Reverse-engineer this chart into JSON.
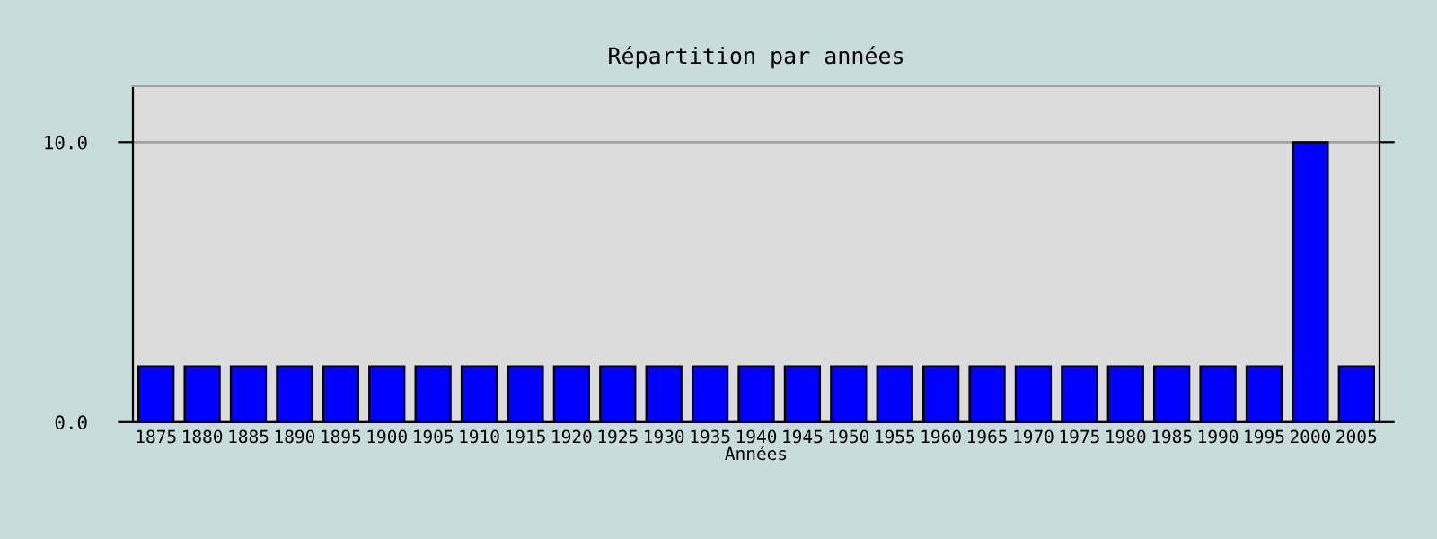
{
  "chart_data": {
    "type": "bar",
    "title": "Répartition par années",
    "xlabel": "Années",
    "categories": [
      "1875",
      "1880",
      "1885",
      "1890",
      "1895",
      "1900",
      "1905",
      "1910",
      "1915",
      "1920",
      "1925",
      "1930",
      "1935",
      "1940",
      "1945",
      "1950",
      "1955",
      "1960",
      "1965",
      "1970",
      "1975",
      "1980",
      "1985",
      "1990",
      "1995",
      "2000",
      "2005"
    ],
    "values": [
      2,
      2,
      2,
      2,
      2,
      2,
      2,
      2,
      2,
      2,
      2,
      2,
      2,
      2,
      2,
      2,
      2,
      2,
      2,
      2,
      2,
      2,
      2,
      2,
      2,
      10,
      2
    ],
    "color": "#0000ff",
    "ylim": [
      0,
      12
    ],
    "yticks": [
      {
        "value": 0,
        "label": "0.0"
      },
      {
        "value": 10,
        "label": "10.0"
      }
    ],
    "grid": "y",
    "legend": false
  }
}
